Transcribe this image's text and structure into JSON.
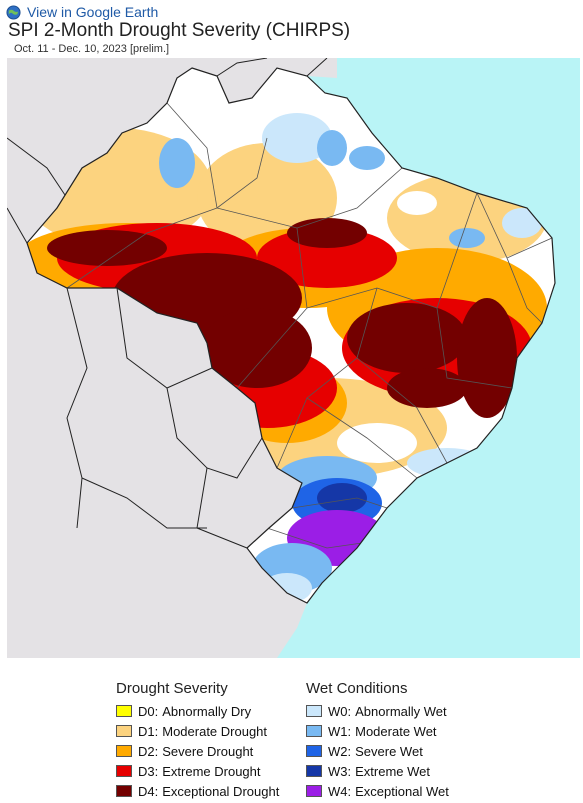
{
  "header": {
    "google_earth_link": "View in Google Earth",
    "title": "SPI 2-Month Drought Severity (CHIRPS)",
    "subtitle": "Oct. 11 - Dec. 10, 2023 [prelim.]"
  },
  "map": {
    "ocean_color": "#b9f4f6",
    "land_color": "#e4e2e5"
  },
  "legend": {
    "drought": {
      "title": "Drought Severity",
      "items": [
        {
          "code": "D0:",
          "label": "Abnormally Dry",
          "color": "#ffff00"
        },
        {
          "code": "D1:",
          "label": "Moderate Drought",
          "color": "#fcd37f"
        },
        {
          "code": "D2:",
          "label": "Severe Drought",
          "color": "#ffaa00"
        },
        {
          "code": "D3:",
          "label": "Extreme Drought",
          "color": "#e60000"
        },
        {
          "code": "D4:",
          "label": "Exceptional Drought",
          "color": "#730000"
        }
      ]
    },
    "wet": {
      "title": "Wet Conditions",
      "items": [
        {
          "code": "W0:",
          "label": "Abnormally Wet",
          "color": "#cbe7fb"
        },
        {
          "code": "W1:",
          "label": "Moderate Wet",
          "color": "#79b9f2"
        },
        {
          "code": "W2:",
          "label": "Severe Wet",
          "color": "#1f64e6"
        },
        {
          "code": "W3:",
          "label": "Extreme Wet",
          "color": "#1537a7"
        },
        {
          "code": "W4:",
          "label": "Exceptional Wet",
          "color": "#9b1ee6"
        }
      ]
    }
  }
}
